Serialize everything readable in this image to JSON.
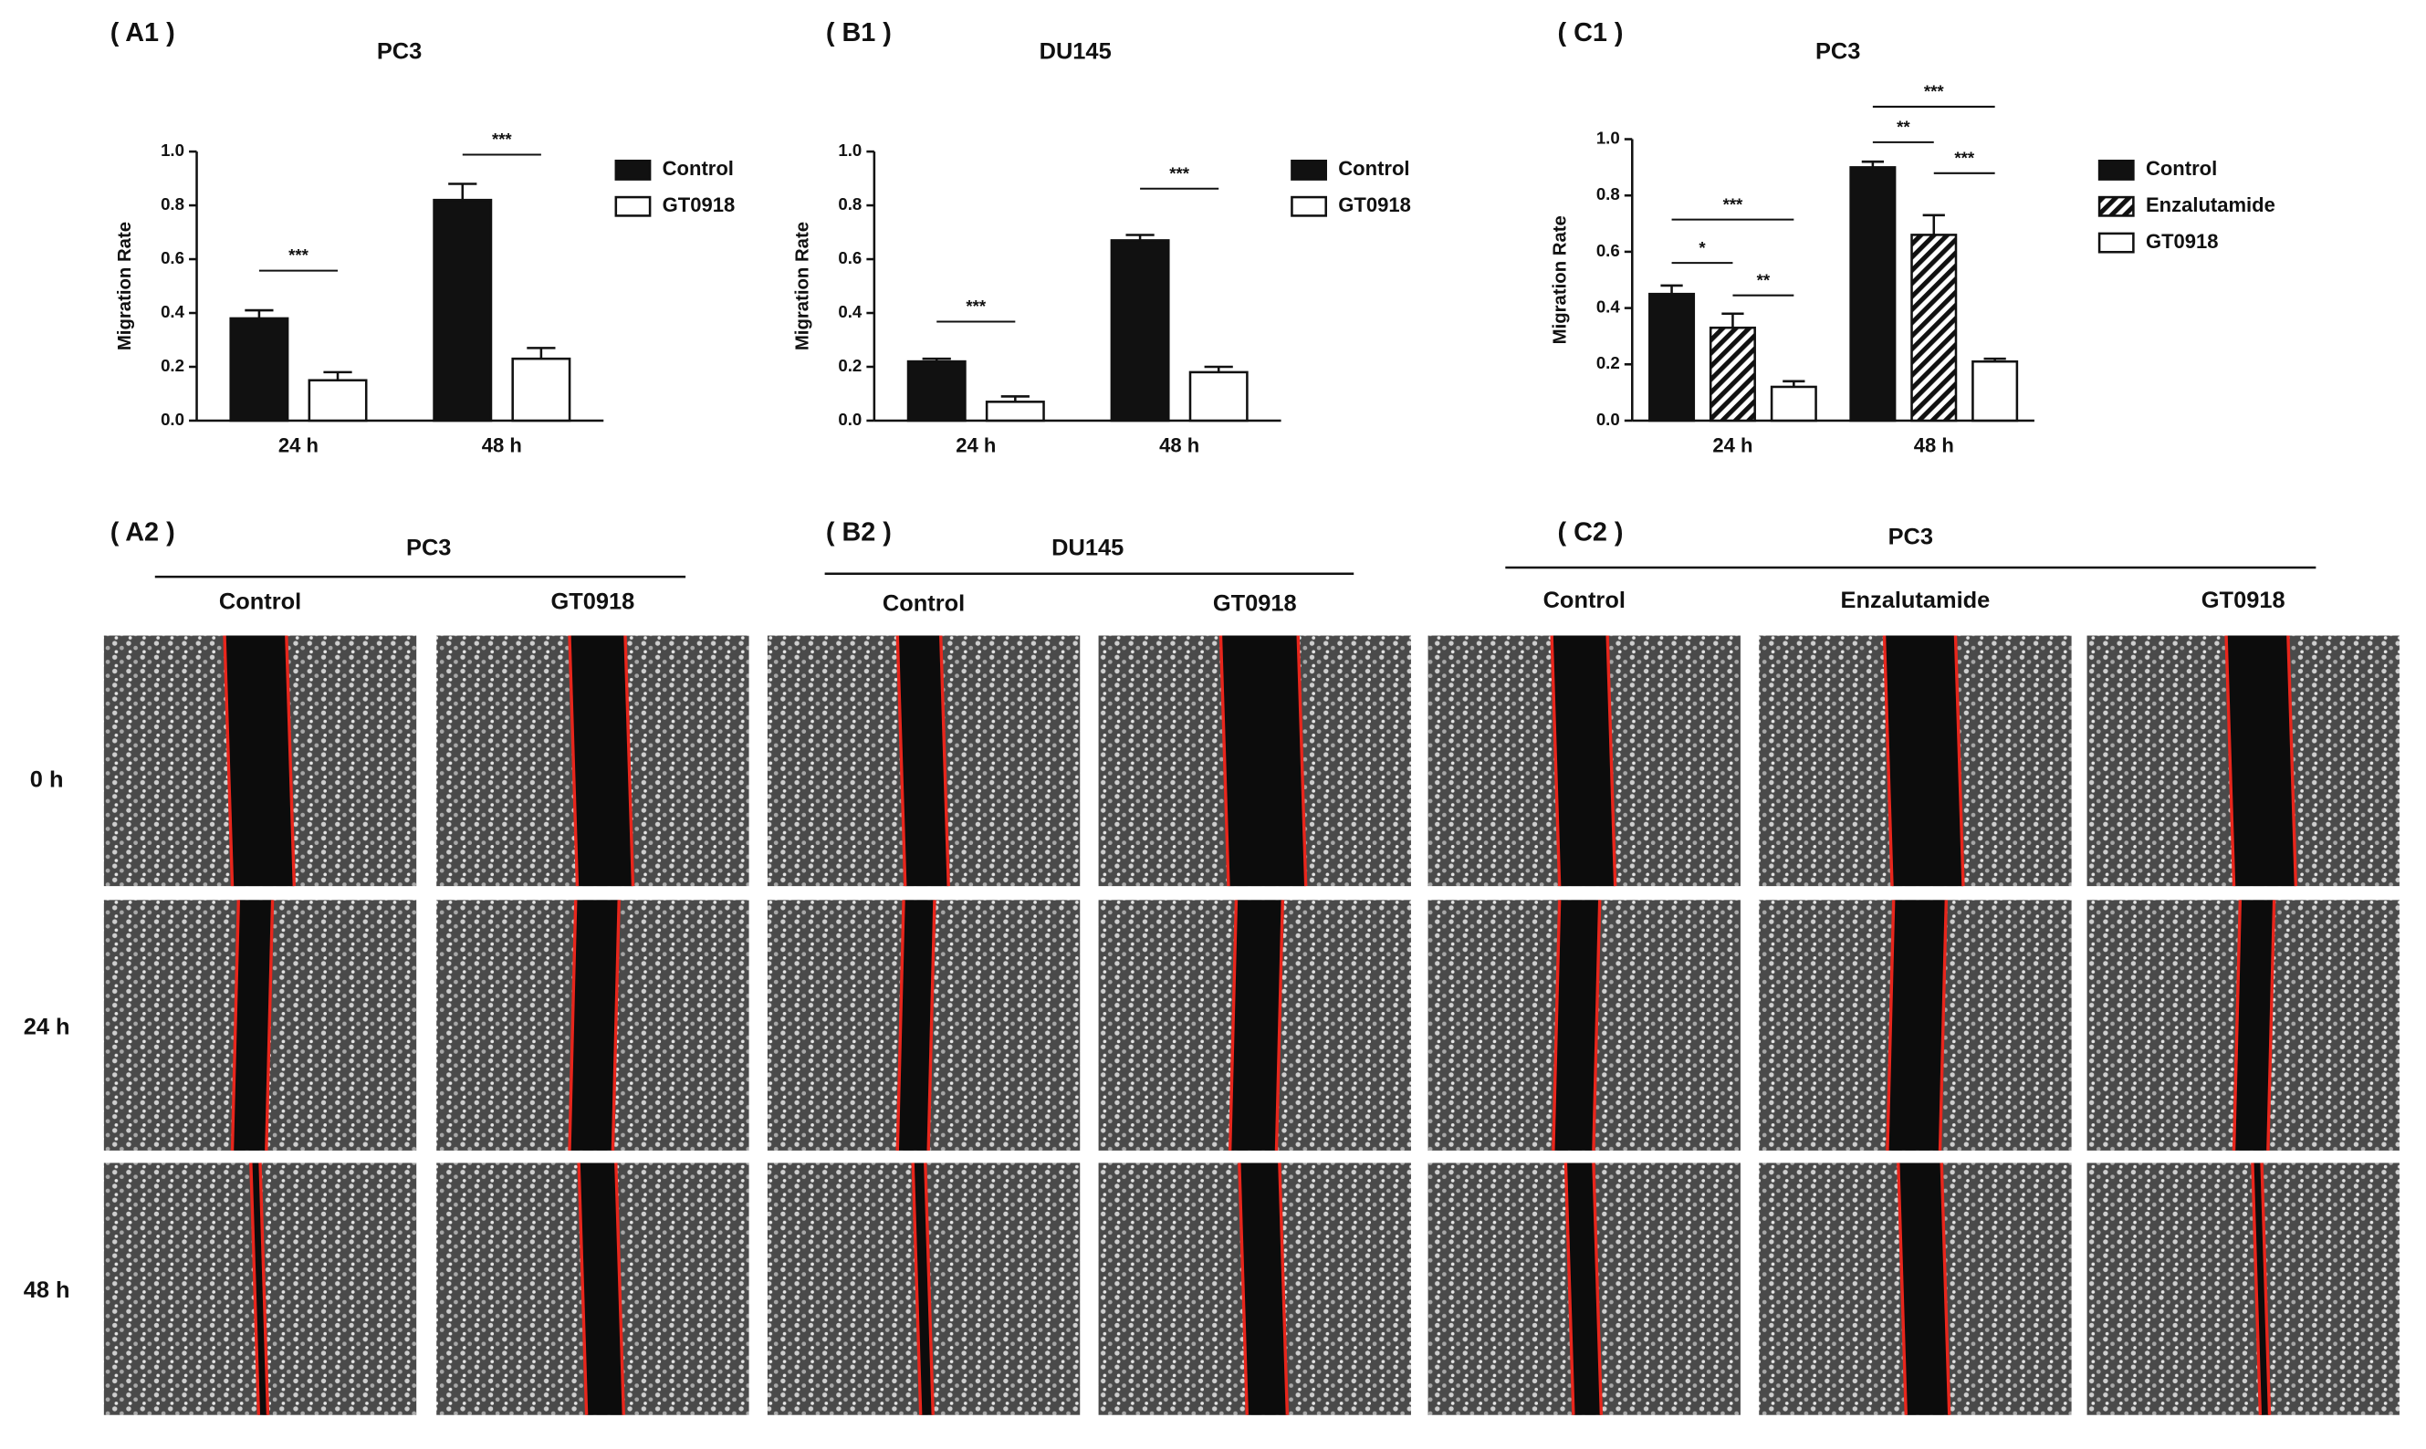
{
  "chart_data": [
    {
      "type": "bar",
      "panel": "( A1 )",
      "title": "PC3",
      "y_label": "Migration Rate",
      "categories": [
        "24 h",
        "48 h"
      ],
      "series": [
        {
          "name": "Control",
          "color": "#111111",
          "values": [
            0.38,
            0.82
          ],
          "errors": [
            0.03,
            0.06
          ]
        },
        {
          "name": "GT0918",
          "color": "#ffffff",
          "values": [
            0.15,
            0.23
          ],
          "errors": [
            0.03,
            0.04
          ]
        }
      ],
      "ylim": [
        0,
        1
      ],
      "yticks": [
        {
          "value": 0,
          "label": "0.0"
        },
        0.2,
        0.4,
        0.6,
        0.8,
        {
          "value": 1,
          "label": "1.0"
        }
      ],
      "annotations": [
        {
          "text": "***",
          "category": 0,
          "series": [
            0,
            1
          ]
        },
        {
          "text": "***",
          "category": 1,
          "series": [
            0,
            1
          ]
        }
      ]
    },
    {
      "type": "bar",
      "panel": "( B1 )",
      "title": "DU145",
      "y_label": "Migration Rate",
      "categories": [
        "24 h",
        "48 h"
      ],
      "series": [
        {
          "name": "Control",
          "color": "#111111",
          "values": [
            0.22,
            0.67
          ],
          "errors": [
            0.01,
            0.02
          ]
        },
        {
          "name": "GT0918",
          "color": "#ffffff",
          "values": [
            0.07,
            0.18
          ],
          "errors": [
            0.02,
            0.02
          ]
        }
      ],
      "ylim": [
        0,
        1
      ],
      "yticks": [
        {
          "value": 0,
          "label": "0.0"
        },
        0.2,
        0.4,
        0.6,
        0.8,
        {
          "value": 1,
          "label": "1.0"
        }
      ],
      "annotations": [
        {
          "text": "***",
          "category": 0,
          "series": [
            0,
            1
          ]
        },
        {
          "text": "***",
          "category": 1,
          "series": [
            0,
            1
          ]
        }
      ]
    },
    {
      "type": "bar",
      "panel": "( C1 )",
      "title": "PC3",
      "y_label": "Migration Rate",
      "categories": [
        "24 h",
        "48 h"
      ],
      "series": [
        {
          "name": "Control",
          "color": "#111111",
          "values": [
            0.45,
            0.9
          ],
          "errors": [
            0.03,
            0.02
          ]
        },
        {
          "name": "Enzalutamide",
          "color": "#ffffff",
          "hatch": true,
          "values": [
            0.33,
            0.66
          ],
          "errors": [
            0.05,
            0.07
          ]
        },
        {
          "name": "GT0918",
          "color": "#ffffff",
          "values": [
            0.12,
            0.21
          ],
          "errors": [
            0.02,
            0.01
          ]
        }
      ],
      "ylim": [
        0,
        1
      ],
      "yticks": [
        {
          "value": 0,
          "label": "0.0"
        },
        0.2,
        0.4,
        0.6,
        0.8,
        {
          "value": 1,
          "label": "1.0"
        }
      ],
      "annotations": [
        {
          "text": "*",
          "category": 0,
          "series": [
            0,
            1
          ]
        },
        {
          "text": "**",
          "category": 0,
          "series": [
            1,
            2
          ]
        },
        {
          "text": "***",
          "category": 0,
          "series": [
            0,
            2
          ]
        },
        {
          "text": "**",
          "category": 1,
          "series": [
            0,
            1
          ]
        },
        {
          "text": "***",
          "category": 1,
          "series": [
            1,
            2
          ]
        },
        {
          "text": "***",
          "category": 1,
          "series": [
            0,
            2
          ]
        }
      ]
    }
  ],
  "image_panels": [
    {
      "panel": "( A2 )",
      "title": "PC3",
      "columns": [
        "Control",
        "GT0918"
      ]
    },
    {
      "panel": "( B2 )",
      "title": "DU145",
      "columns": [
        "Control",
        "GT0918"
      ]
    },
    {
      "panel": "( C2 )",
      "title": "PC3",
      "columns": [
        "Control",
        "Enzalutamide",
        "GT0918"
      ]
    }
  ],
  "rows": [
    "0 h",
    "24 h",
    "48 h"
  ]
}
